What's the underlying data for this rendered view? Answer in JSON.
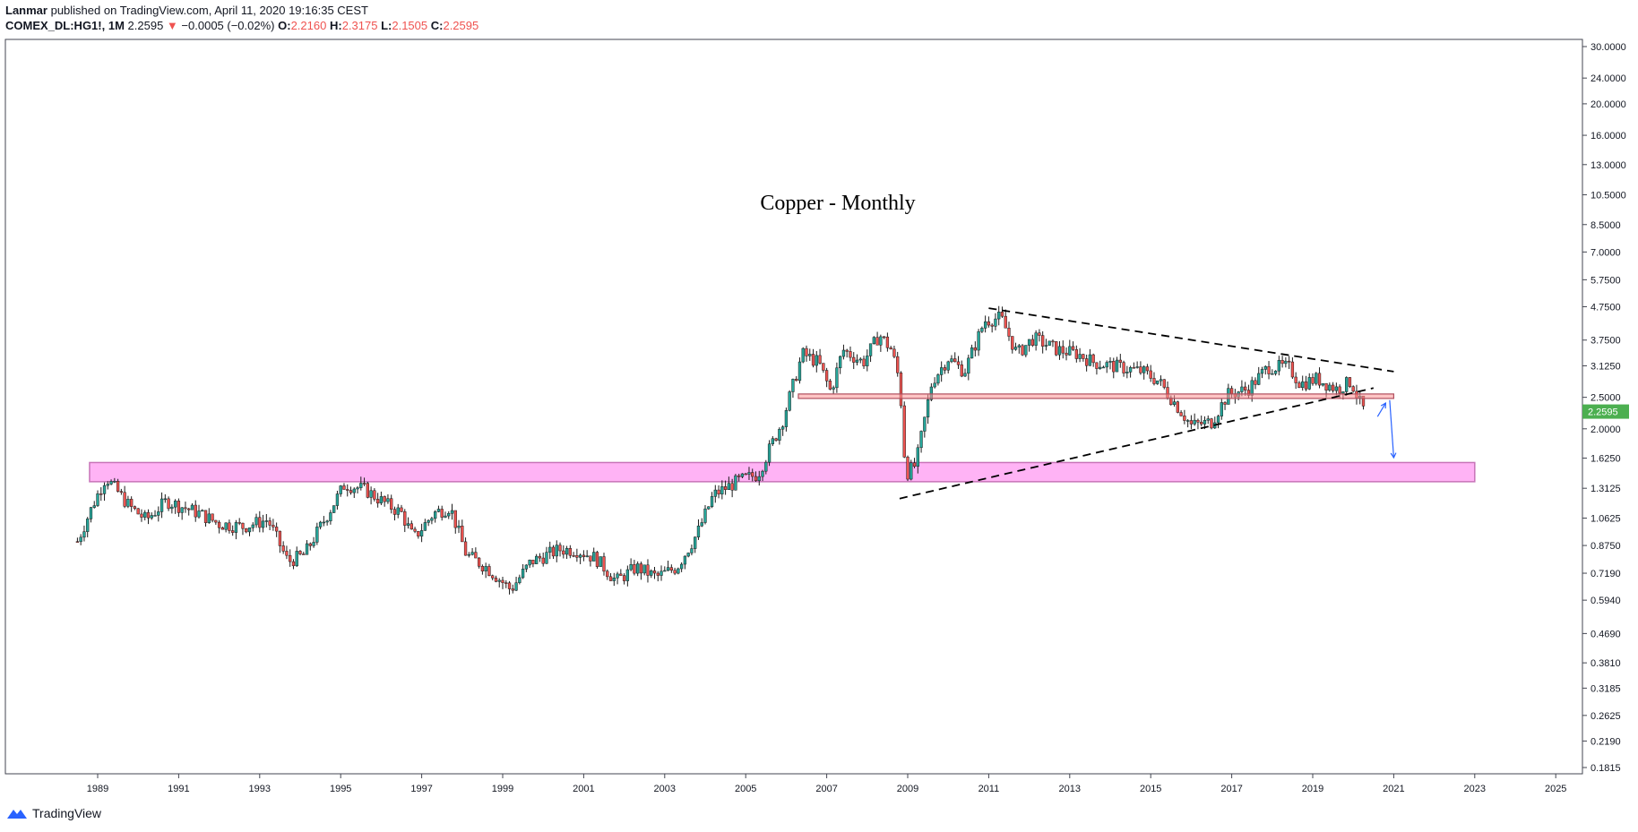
{
  "header": {
    "author": "Lanmar",
    "published_text": "published on TradingView.com, April 11, 2020 19:16:35 CEST",
    "symbol": "COMEX_DL:HG1!, 1M",
    "last": "2.2595",
    "change_arrow": "▼",
    "change": "−0.0005 (−0.02%)",
    "o_label": "O:",
    "o_value": "2.2160",
    "h_label": "H:",
    "h_value": "2.3175",
    "l_label": "L:",
    "l_value": "2.1505",
    "c_label": "C:",
    "c_value": "2.2595"
  },
  "footer": {
    "brand": "TradingView",
    "logo_icon": "tradingview-logo-icon"
  },
  "colors": {
    "up": "#26a69a",
    "down": "#ef5350",
    "zone_fill": "#ffb3f5",
    "zone_border": "#c774b8",
    "price_tag": "#4caf50",
    "arrow": "#2962ff"
  },
  "chart_data": {
    "type": "candlestick",
    "title": "Copper - Monthly",
    "scale": "log",
    "ylim": [
      0.1815,
      30
    ],
    "xlim": [
      1986.8,
      2028.4
    ],
    "y_ticks": [
      "30.0000",
      "24.0000",
      "20.0000",
      "16.0000",
      "13.0000",
      "10.5000",
      "8.5000",
      "7.0000",
      "5.7500",
      "4.7500",
      "3.7500",
      "3.1250",
      "2.5000",
      "2.0000",
      "1.6250",
      "1.3125",
      "1.0625",
      "0.8750",
      "0.7190",
      "0.5940",
      "0.4690",
      "0.3810",
      "0.3185",
      "0.2625",
      "0.2190",
      "0.1815"
    ],
    "x_ticks": [
      "1989",
      "1991",
      "1993",
      "1995",
      "1997",
      "1999",
      "2001",
      "2003",
      "2005",
      "2007",
      "2009",
      "2011",
      "2013",
      "2015",
      "2017",
      "2019",
      "2021",
      "2023",
      "2025"
    ],
    "last_price_label": "2.2595",
    "price_path": [
      [
        1988.5,
        0.9
      ],
      [
        1988.9,
        1.18
      ],
      [
        1989.2,
        1.42
      ],
      [
        1989.8,
        1.15
      ],
      [
        1990.2,
        1.05
      ],
      [
        1990.7,
        1.2
      ],
      [
        1991.5,
        1.1
      ],
      [
        1992.0,
        1.02
      ],
      [
        1992.6,
        1.0
      ],
      [
        1993.2,
        1.05
      ],
      [
        1993.7,
        0.78
      ],
      [
        1994.1,
        0.82
      ],
      [
        1994.6,
        1.05
      ],
      [
        1995.1,
        1.35
      ],
      [
        1995.6,
        1.3
      ],
      [
        1996.1,
        1.18
      ],
      [
        1996.5,
        1.1
      ],
      [
        1996.8,
        0.92
      ],
      [
        1997.3,
        1.1
      ],
      [
        1997.7,
        1.15
      ],
      [
        1998.1,
        0.82
      ],
      [
        1998.6,
        0.75
      ],
      [
        1999.2,
        0.64
      ],
      [
        1999.7,
        0.78
      ],
      [
        2000.4,
        0.85
      ],
      [
        2000.8,
        0.85
      ],
      [
        2001.3,
        0.8
      ],
      [
        2001.8,
        0.68
      ],
      [
        2002.3,
        0.75
      ],
      [
        2002.8,
        0.7
      ],
      [
        2003.3,
        0.75
      ],
      [
        2003.8,
        0.95
      ],
      [
        2004.2,
        1.25
      ],
      [
        2004.8,
        1.38
      ],
      [
        2005.3,
        1.45
      ],
      [
        2005.9,
        2.1
      ],
      [
        2006.4,
        3.4
      ],
      [
        2006.8,
        3.2
      ],
      [
        2007.1,
        2.6
      ],
      [
        2007.4,
        3.5
      ],
      [
        2007.9,
        3.2
      ],
      [
        2008.3,
        3.9
      ],
      [
        2008.6,
        3.5
      ],
      [
        2008.8,
        2.8
      ],
      [
        2008.95,
        1.45
      ],
      [
        2009.2,
        1.55
      ],
      [
        2009.6,
        2.8
      ],
      [
        2010.0,
        3.3
      ],
      [
        2010.4,
        3.0
      ],
      [
        2010.9,
        4.3
      ],
      [
        2011.3,
        4.4
      ],
      [
        2011.7,
        3.4
      ],
      [
        2012.1,
        3.8
      ],
      [
        2012.7,
        3.5
      ],
      [
        2013.2,
        3.4
      ],
      [
        2013.6,
        3.2
      ],
      [
        2014.2,
        3.1
      ],
      [
        2014.8,
        3.0
      ],
      [
        2015.2,
        2.8
      ],
      [
        2015.6,
        2.4
      ],
      [
        2016.0,
        2.05
      ],
      [
        2016.5,
        2.1
      ],
      [
        2016.9,
        2.55
      ],
      [
        2017.4,
        2.65
      ],
      [
        2017.9,
        3.1
      ],
      [
        2018.4,
        3.1
      ],
      [
        2018.7,
        2.75
      ],
      [
        2019.1,
        2.85
      ],
      [
        2019.6,
        2.65
      ],
      [
        2019.95,
        2.8
      ],
      [
        2020.2,
        2.35
      ],
      [
        2020.3,
        2.26
      ]
    ],
    "support_zone": {
      "x": [
        1988.8,
        2023.0
      ],
      "y": [
        1.375,
        1.575
      ]
    },
    "resistance_zone": {
      "x": [
        2006.3,
        2021.0
      ],
      "y": [
        2.48,
        2.56
      ]
    },
    "trendlines": [
      {
        "from": [
          2011.0,
          4.7
        ],
        "to": [
          2021.0,
          3.0
        ],
        "style": "dashed"
      },
      {
        "from": [
          2008.8,
          1.22
        ],
        "to": [
          2020.5,
          2.67
        ],
        "style": "dashed"
      }
    ],
    "arrows": [
      {
        "from": [
          2020.6,
          2.18
        ],
        "to": [
          2020.8,
          2.4
        ]
      },
      {
        "from": [
          2020.9,
          2.45
        ],
        "to": [
          2021.0,
          1.63
        ]
      }
    ]
  }
}
